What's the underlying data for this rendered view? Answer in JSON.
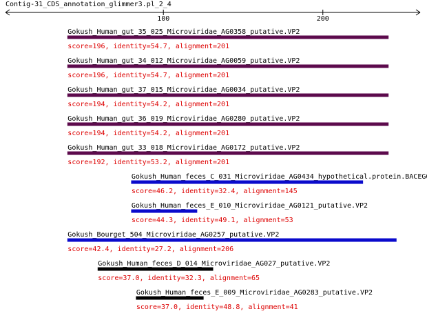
{
  "title": "Contig-31_CDS_annotation_glimmer3.pl_2_4",
  "axis": {
    "range": [
      1,
      261
    ],
    "ticks": [
      100,
      200
    ]
  },
  "hits": [
    {
      "label": "Gokush_Human_gut_35_025_Microviridae_AG0358_putative.VP2",
      "start": 40,
      "end": 241,
      "color": "#5c0a4c",
      "score": "score=196, identity=54.7, alignment=201"
    },
    {
      "label": "Gokush_Human_gut_34_012_Microviridae_AG0059_putative.VP2",
      "start": 40,
      "end": 241,
      "color": "#5c0a4c",
      "score": "score=196, identity=54.7, alignment=201"
    },
    {
      "label": "Gokush_Human_gut_37_015_Microviridae_AG0034_putative.VP2",
      "start": 40,
      "end": 241,
      "color": "#5c0a4c",
      "score": "score=194, identity=54.2, alignment=201"
    },
    {
      "label": "Gokush_Human_gut_36_019_Microviridae_AG0280_putative.VP2",
      "start": 40,
      "end": 241,
      "color": "#5c0a4c",
      "score": "score=194, identity=54.2, alignment=201"
    },
    {
      "label": "Gokush_Human_gut_33_018_Microviridae_AG0172_putative.VP2",
      "start": 40,
      "end": 241,
      "color": "#5c0a4c",
      "score": "score=192, identity=53.2, alignment=201"
    },
    {
      "label": "Gokush_Human_feces_C_031_Microviridae_AG0434_hypothetical.protein.BACEG0",
      "start": 80,
      "end": 225,
      "color": "#0a0acc",
      "score": "score=46.2, identity=32.4, alignment=145"
    },
    {
      "label": "Gokush_Human_feces_E_010_Microviridae_AG0121_putative.VP2",
      "start": 80,
      "end": 121,
      "color": "#0a0acc",
      "score": "score=44.3, identity=49.1, alignment=53"
    },
    {
      "label": "Gokush_Bourget_504_Microviridae_AG0257_putative.VP2",
      "start": 40,
      "end": 246,
      "color": "#0a0acc",
      "score": "score=42.4, identity=27.2, alignment=206"
    },
    {
      "label": "Gokush_Human_feces_D_014_Microviridae_AG027_putative.VP2",
      "start": 59,
      "end": 131,
      "color": "#000000",
      "score": "score=37.0, identity=32.3, alignment=65"
    },
    {
      "label": "Gokush_Human_feces_E_009_Microviridae_AG0283_putative.VP2",
      "start": 83,
      "end": 125,
      "color": "#000000",
      "score": "score=37.0, identity=48.8, alignment=41"
    }
  ]
}
